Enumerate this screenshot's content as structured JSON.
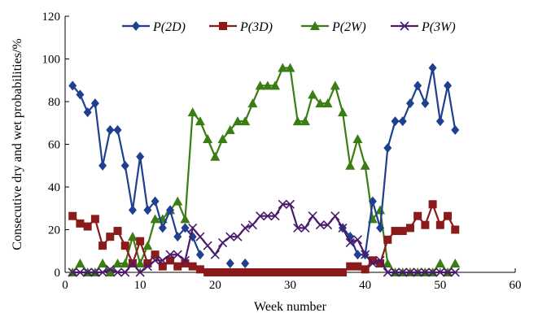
{
  "chart_data": {
    "type": "line",
    "xlabel": "Week number",
    "ylabel": "Consecutive dry and wet probabilities/%",
    "xlim": [
      0,
      60
    ],
    "ylim": [
      0,
      120
    ],
    "xticks": [
      0,
      10,
      20,
      30,
      40,
      50,
      60
    ],
    "yticks": [
      0,
      20,
      40,
      60,
      80,
      100,
      120
    ],
    "grid": false,
    "legend_position": "top",
    "series": [
      {
        "name": "P(2D)",
        "color": "#1f3f8f",
        "marker": "diamond",
        "points": [
          [
            1,
            87.5
          ],
          [
            2,
            83.3
          ],
          [
            3,
            75
          ],
          [
            4,
            79.2
          ],
          [
            5,
            50
          ],
          [
            6,
            66.7
          ],
          [
            7,
            66.7
          ],
          [
            8,
            50
          ],
          [
            9,
            29.2
          ],
          [
            10,
            54.2
          ],
          [
            11,
            29.2
          ],
          [
            12,
            33.3
          ],
          [
            13,
            20.8
          ],
          [
            14,
            29.2
          ],
          [
            15,
            16.7
          ],
          [
            16,
            20.8
          ],
          [
            17,
            16.7
          ],
          [
            18,
            8.3
          ],
          [
            22,
            4.2
          ],
          [
            24,
            4.2
          ],
          [
            37,
            20.8
          ],
          [
            38,
            16.7
          ],
          [
            39,
            8.3
          ],
          [
            40,
            8.3
          ],
          [
            41,
            33.3
          ],
          [
            42,
            20.8
          ],
          [
            43,
            58.3
          ],
          [
            44,
            70.8
          ],
          [
            45,
            70.8
          ],
          [
            46,
            79.2
          ],
          [
            47,
            87.5
          ],
          [
            48,
            79.2
          ],
          [
            49,
            95.8
          ],
          [
            50,
            70.8
          ],
          [
            51,
            87.5
          ],
          [
            52,
            66.7
          ]
        ]
      },
      {
        "name": "P(3D)",
        "color": "#8b1a1a",
        "marker": "square",
        "points": [
          [
            1,
            26.4
          ],
          [
            2,
            22.9
          ],
          [
            3,
            21.5
          ],
          [
            4,
            25
          ],
          [
            5,
            12.5
          ],
          [
            6,
            16.7
          ],
          [
            7,
            19.4
          ],
          [
            8,
            12.5
          ],
          [
            9,
            4.2
          ],
          [
            10,
            14.6
          ],
          [
            11,
            4.2
          ],
          [
            12,
            8.3
          ],
          [
            13,
            2.8
          ],
          [
            14,
            5.6
          ],
          [
            15,
            2.8
          ],
          [
            16,
            4.2
          ],
          [
            17,
            2.8
          ],
          [
            18,
            1.4
          ],
          [
            19,
            0
          ],
          [
            20,
            0
          ],
          [
            21,
            0
          ],
          [
            22,
            0
          ],
          [
            23,
            0
          ],
          [
            24,
            0
          ],
          [
            25,
            0
          ],
          [
            26,
            0
          ],
          [
            27,
            0
          ],
          [
            28,
            0
          ],
          [
            29,
            0
          ],
          [
            30,
            0
          ],
          [
            31,
            0
          ],
          [
            32,
            0
          ],
          [
            33,
            0
          ],
          [
            34,
            0
          ],
          [
            35,
            0
          ],
          [
            36,
            0
          ],
          [
            37,
            0
          ],
          [
            38,
            2.8
          ],
          [
            39,
            2.8
          ],
          [
            40,
            1.4
          ],
          [
            41,
            5.6
          ],
          [
            42,
            4.2
          ],
          [
            43,
            15.3
          ],
          [
            44,
            19.4
          ],
          [
            45,
            19.4
          ],
          [
            46,
            20.8
          ],
          [
            47,
            26.4
          ],
          [
            48,
            22.2
          ],
          [
            49,
            31.9
          ],
          [
            50,
            22.2
          ],
          [
            51,
            26.4
          ],
          [
            52,
            20
          ]
        ]
      },
      {
        "name": "P(2W)",
        "color": "#3a7d12",
        "marker": "triangle",
        "points": [
          [
            1,
            0
          ],
          [
            2,
            4.2
          ],
          [
            3,
            0
          ],
          [
            4,
            0
          ],
          [
            5,
            4.2
          ],
          [
            6,
            0
          ],
          [
            7,
            4.2
          ],
          [
            8,
            4.2
          ],
          [
            9,
            16.7
          ],
          [
            10,
            4.2
          ],
          [
            11,
            12.5
          ],
          [
            12,
            25
          ],
          [
            13,
            25
          ],
          [
            14,
            29.2
          ],
          [
            15,
            33.3
          ],
          [
            16,
            25
          ],
          [
            17,
            75
          ],
          [
            18,
            70.8
          ],
          [
            19,
            62.5
          ],
          [
            20,
            54.2
          ],
          [
            21,
            62.5
          ],
          [
            22,
            66.7
          ],
          [
            23,
            70.8
          ],
          [
            24,
            70.8
          ],
          [
            25,
            79.2
          ],
          [
            26,
            87.5
          ],
          [
            27,
            87.5
          ],
          [
            28,
            87.5
          ],
          [
            29,
            95.8
          ],
          [
            30,
            95.8
          ],
          [
            31,
            70.8
          ],
          [
            32,
            70.8
          ],
          [
            33,
            83.3
          ],
          [
            34,
            79.2
          ],
          [
            35,
            79.2
          ],
          [
            36,
            87.5
          ],
          [
            37,
            75
          ],
          [
            38,
            50
          ],
          [
            39,
            62.5
          ],
          [
            40,
            50
          ],
          [
            41,
            25
          ],
          [
            42,
            29.2
          ],
          [
            43,
            4.2
          ],
          [
            44,
            0
          ],
          [
            45,
            0
          ],
          [
            46,
            0
          ],
          [
            47,
            0
          ],
          [
            48,
            0
          ],
          [
            49,
            0
          ],
          [
            50,
            4.2
          ],
          [
            51,
            0
          ],
          [
            52,
            4.2
          ]
        ]
      },
      {
        "name": "P(3W)",
        "color": "#4a1a6b",
        "marker": "x",
        "points": [
          [
            1,
            0
          ],
          [
            2,
            0
          ],
          [
            3,
            0
          ],
          [
            4,
            0
          ],
          [
            5,
            0
          ],
          [
            6,
            1.4
          ],
          [
            7,
            0
          ],
          [
            8,
            0
          ],
          [
            9,
            4.2
          ],
          [
            10,
            0
          ],
          [
            11,
            2.8
          ],
          [
            12,
            5.6
          ],
          [
            13,
            5.6
          ],
          [
            14,
            8.3
          ],
          [
            15,
            8.3
          ],
          [
            16,
            5.6
          ],
          [
            17,
            20.8
          ],
          [
            18,
            16.7
          ],
          [
            19,
            12.5
          ],
          [
            20,
            8.3
          ],
          [
            21,
            13.9
          ],
          [
            22,
            16.7
          ],
          [
            23,
            16.7
          ],
          [
            24,
            20.8
          ],
          [
            25,
            22.2
          ],
          [
            26,
            26.4
          ],
          [
            27,
            26.4
          ],
          [
            28,
            26.4
          ],
          [
            29,
            31.9
          ],
          [
            30,
            31.9
          ],
          [
            31,
            20.8
          ],
          [
            32,
            20.8
          ],
          [
            33,
            26.4
          ],
          [
            34,
            22.2
          ],
          [
            35,
            22.2
          ],
          [
            36,
            26.4
          ],
          [
            37,
            20.8
          ],
          [
            38,
            13.9
          ],
          [
            39,
            15.3
          ],
          [
            40,
            8.3
          ],
          [
            41,
            4.2
          ],
          [
            42,
            5.6
          ],
          [
            43,
            0
          ],
          [
            44,
            0
          ],
          [
            45,
            0
          ],
          [
            46,
            0
          ],
          [
            47,
            0
          ],
          [
            48,
            0
          ],
          [
            49,
            0
          ],
          [
            50,
            0
          ],
          [
            51,
            0
          ],
          [
            52,
            0
          ]
        ]
      }
    ]
  }
}
